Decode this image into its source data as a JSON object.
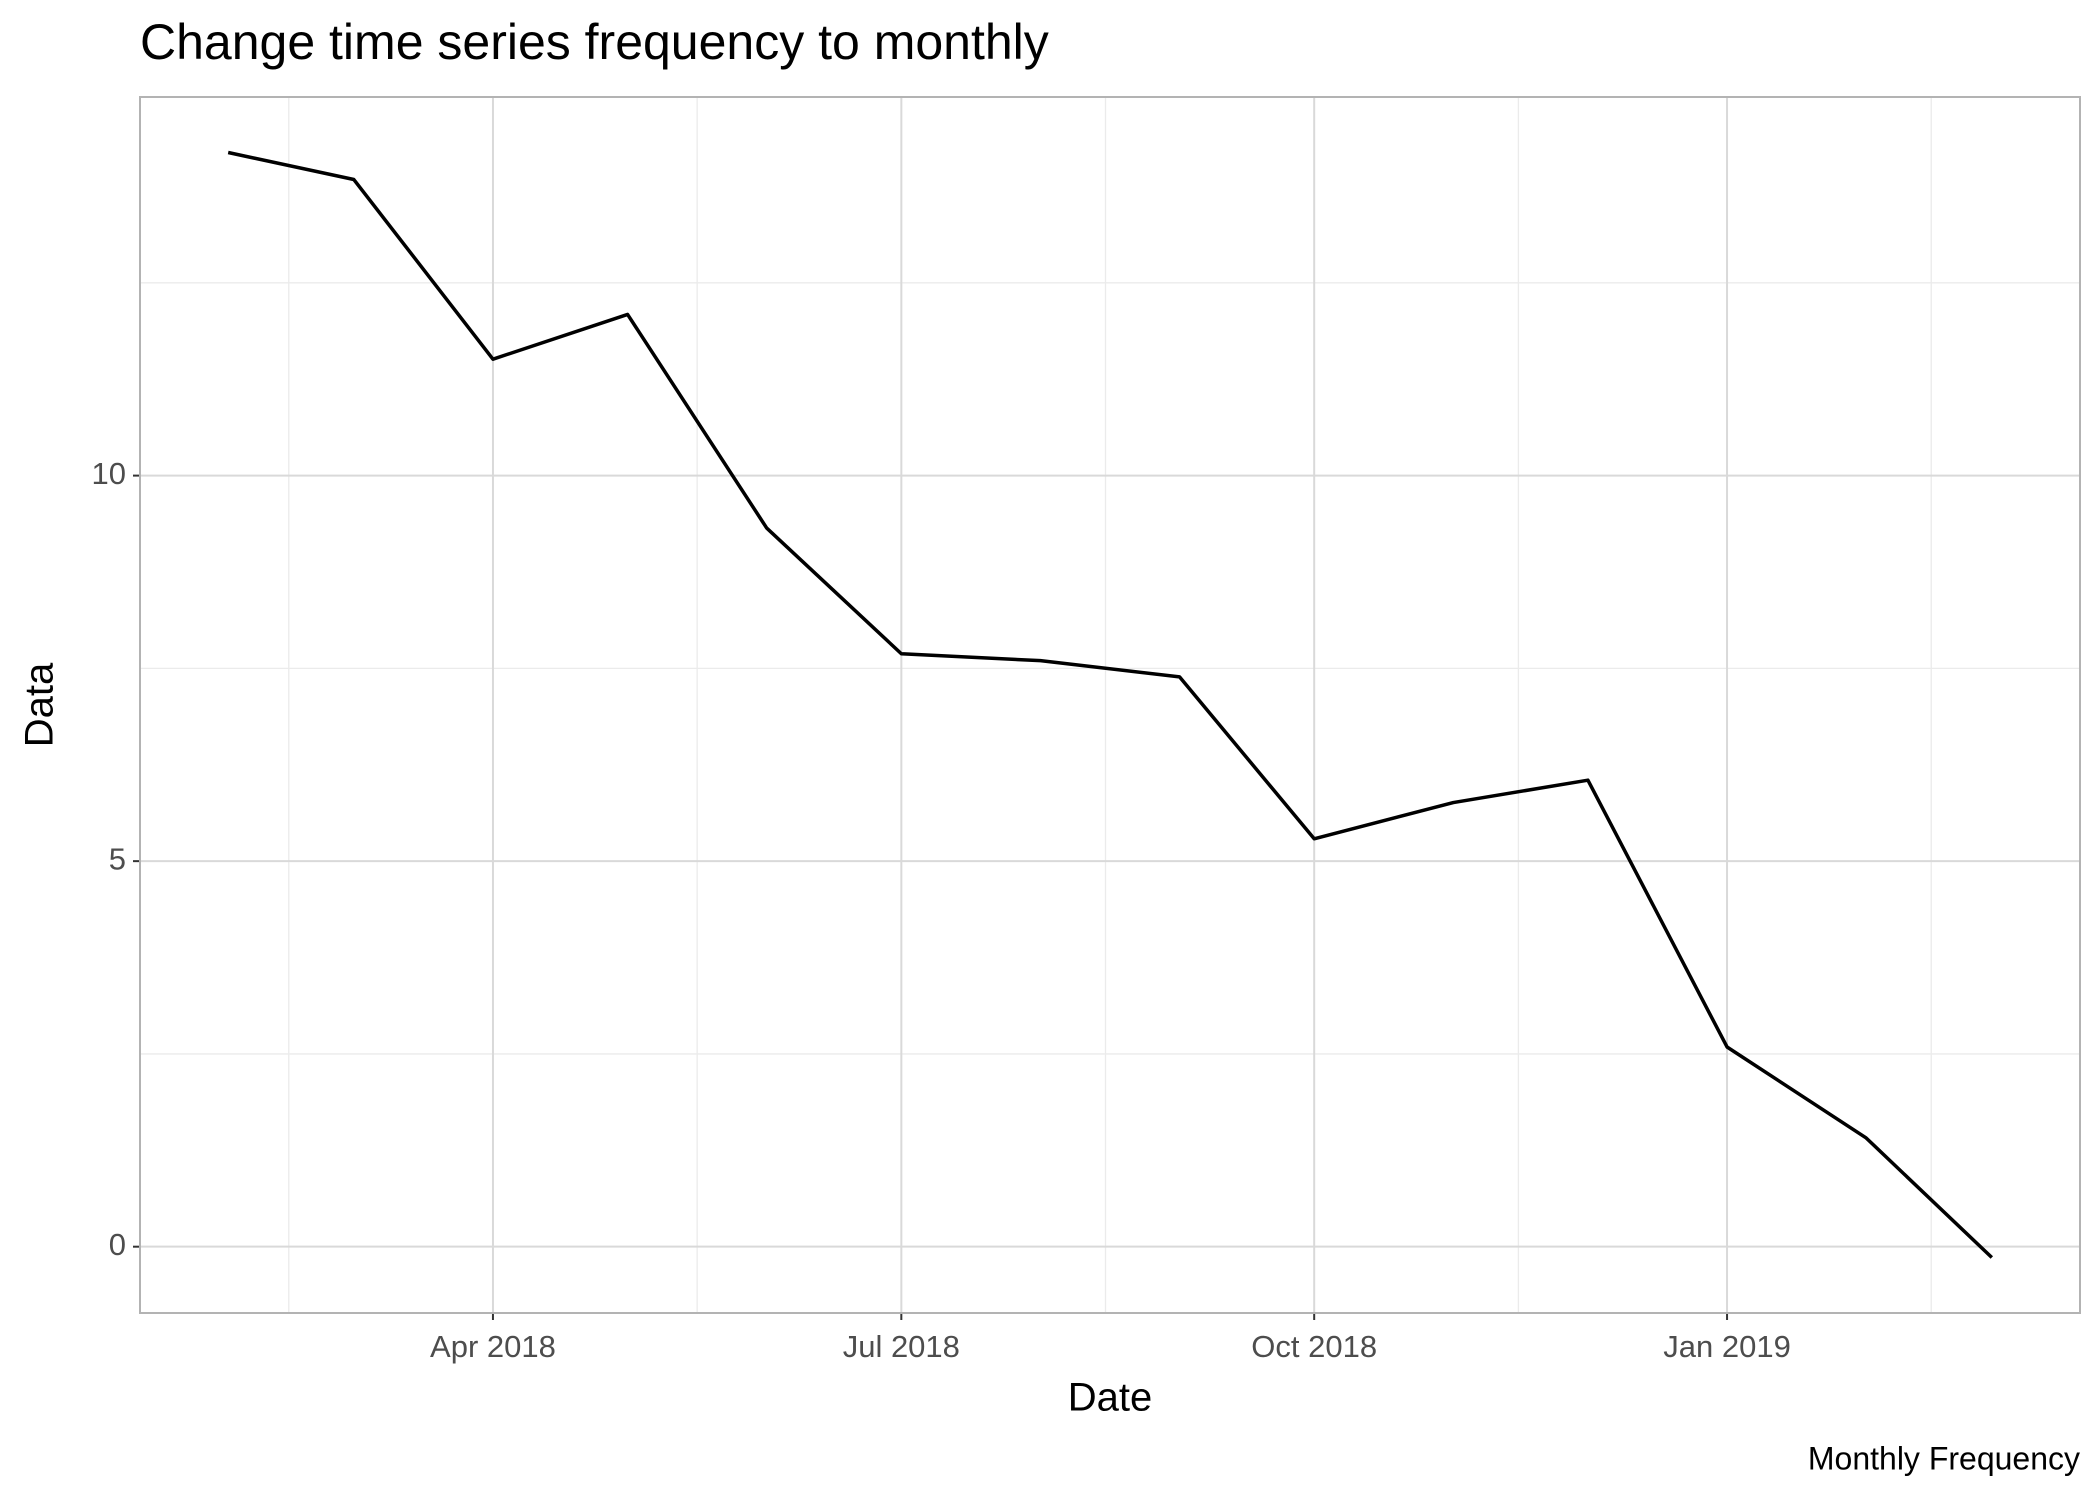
{
  "chart_data": {
    "type": "line",
    "title": "Change time series frequency to monthly",
    "x_label": "Date",
    "y_label": "Data",
    "caption": "Monthly Frequency",
    "x": [
      "2018-02",
      "2018-03",
      "2018-04",
      "2018-05",
      "2018-06",
      "2018-07",
      "2018-08",
      "2018-09",
      "2018-10",
      "2018-11",
      "2018-12",
      "2019-01",
      "2019-02",
      "2019-03"
    ],
    "series": [
      {
        "name": "Data",
        "color": "#000000",
        "values": [
          14.19,
          13.84,
          11.51,
          12.09,
          9.32,
          7.69,
          7.6,
          7.39,
          5.29,
          5.76,
          6.05,
          2.59,
          1.41,
          -0.14
        ]
      }
    ],
    "xticks": [
      {
        "value": "2018-04",
        "label": "Apr 2018"
      },
      {
        "value": "2018-07",
        "label": "Jul 2018"
      },
      {
        "value": "2018-10",
        "label": "Oct 2018"
      },
      {
        "value": "2019-01",
        "label": "Jan 2019"
      }
    ],
    "ylim": [
      -0.86,
      14.91
    ],
    "yticks": [
      0,
      5,
      10
    ],
    "grid": true
  }
}
